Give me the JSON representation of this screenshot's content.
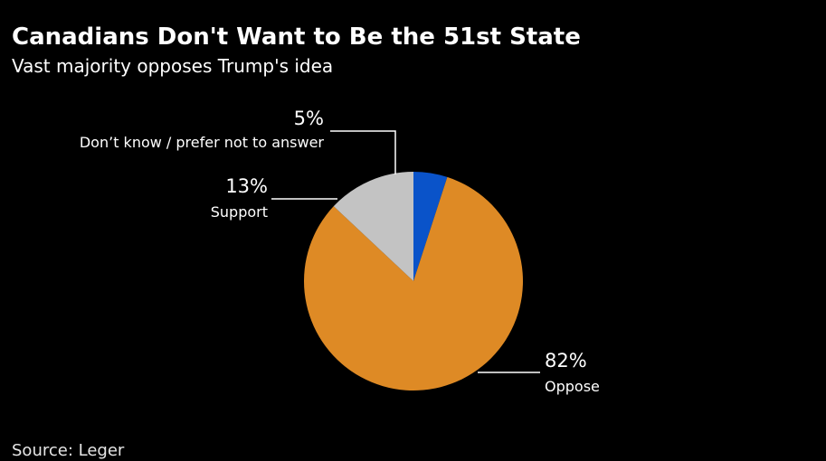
{
  "chart_data": {
    "type": "pie",
    "title": "Canadians Don't Want to Be the 51st State",
    "subtitle": "Vast majority opposes Trump's idea",
    "source": "Source: Leger",
    "slices": [
      {
        "label": "Don’t know / prefer not to answer",
        "value": 5,
        "display": "5%",
        "color": "#0a53c9"
      },
      {
        "label": "Oppose",
        "value": 82,
        "display": "82%",
        "color": "#de8a25"
      },
      {
        "label": "Support",
        "value": 13,
        "display": "13%",
        "color": "#c3c3c3"
      }
    ]
  }
}
